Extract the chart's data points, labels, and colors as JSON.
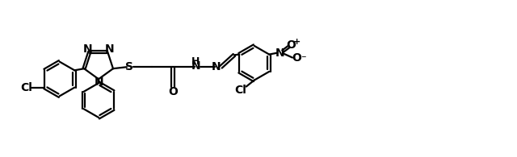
{
  "bg_color": "#ffffff",
  "line_color": "#000000",
  "line_width": 1.6,
  "figsize": [
    6.4,
    1.95
  ],
  "dpi": 100,
  "xlim": [
    0,
    6.4
  ],
  "ylim": [
    0,
    1.95
  ]
}
